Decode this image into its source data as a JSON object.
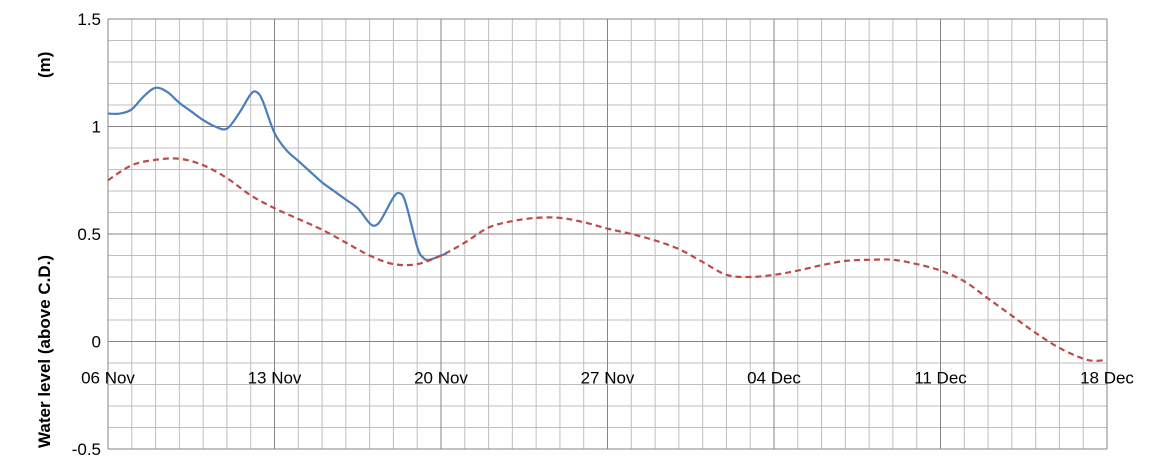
{
  "colors": {
    "grid_minor": "#bfbfbf",
    "grid_major": "#868686",
    "series_observed": "#4a7ebb",
    "series_predicted": "#be4b48"
  },
  "chart_data": {
    "type": "line",
    "title": "",
    "xlabel": "",
    "ylabel": "Water level (above C.D.)",
    "ylabel_unit": "(m)",
    "x_axis_type": "date",
    "xlim": [
      "2020-11-06",
      "2020-12-18"
    ],
    "ylim": [
      -0.5,
      1.5
    ],
    "y_tick_values": [
      -0.5,
      0,
      0.5,
      1,
      1.5
    ],
    "y_tick_labels": [
      "-0.5",
      "0",
      "0.5",
      "1",
      "1.5"
    ],
    "x_tick_values": [
      "2020-11-06",
      "2020-11-13",
      "2020-11-20",
      "2020-11-27",
      "2020-12-04",
      "2020-12-11",
      "2020-12-18"
    ],
    "x_tick_labels": [
      "06 Nov",
      "13 Nov",
      "20 Nov",
      "27 Nov",
      "04 Dec",
      "11 Dec",
      "18 Dec"
    ],
    "x_axis_crosses_at": 0,
    "grid": true,
    "legend": "none",
    "series": [
      {
        "style": "solid",
        "color": "#4a7ebb",
        "points": [
          [
            "2020-11-06 00:00",
            1.06
          ],
          [
            "2020-11-06 12:00",
            1.06
          ],
          [
            "2020-11-07 00:00",
            1.08
          ],
          [
            "2020-11-07 12:00",
            1.14
          ],
          [
            "2020-11-08 00:00",
            1.18
          ],
          [
            "2020-11-08 12:00",
            1.16
          ],
          [
            "2020-11-09 00:00",
            1.11
          ],
          [
            "2020-11-09 12:00",
            1.07
          ],
          [
            "2020-11-10 00:00",
            1.03
          ],
          [
            "2020-11-10 12:00",
            1.0
          ],
          [
            "2020-11-11 00:00",
            0.99
          ],
          [
            "2020-11-11 12:00",
            1.06
          ],
          [
            "2020-11-12 00:00",
            1.15
          ],
          [
            "2020-11-12 06:00",
            1.16
          ],
          [
            "2020-11-12 12:00",
            1.12
          ],
          [
            "2020-11-13 00:00",
            0.97
          ],
          [
            "2020-11-13 12:00",
            0.89
          ],
          [
            "2020-11-14 00:00",
            0.84
          ],
          [
            "2020-11-14 12:00",
            0.79
          ],
          [
            "2020-11-15 00:00",
            0.74
          ],
          [
            "2020-11-15 12:00",
            0.7
          ],
          [
            "2020-11-16 00:00",
            0.66
          ],
          [
            "2020-11-16 12:00",
            0.62
          ],
          [
            "2020-11-17 00:00",
            0.55
          ],
          [
            "2020-11-17 06:00",
            0.54
          ],
          [
            "2020-11-17 12:00",
            0.57
          ],
          [
            "2020-11-18 00:00",
            0.67
          ],
          [
            "2020-11-18 06:00",
            0.69
          ],
          [
            "2020-11-18 12:00",
            0.65
          ],
          [
            "2020-11-19 00:00",
            0.44
          ],
          [
            "2020-11-19 06:00",
            0.39
          ],
          [
            "2020-11-19 12:00",
            0.38
          ],
          [
            "2020-11-20 00:00",
            0.4
          ],
          [
            "2020-11-20 06:00",
            0.41
          ]
        ]
      },
      {
        "style": "dashed",
        "color": "#be4b48",
        "points": [
          [
            "2020-11-06 00:00",
            0.75
          ],
          [
            "2020-11-07 00:00",
            0.82
          ],
          [
            "2020-11-08 00:00",
            0.845
          ],
          [
            "2020-11-09 00:00",
            0.85
          ],
          [
            "2020-11-10 00:00",
            0.82
          ],
          [
            "2020-11-11 00:00",
            0.76
          ],
          [
            "2020-11-12 00:00",
            0.68
          ],
          [
            "2020-11-13 00:00",
            0.62
          ],
          [
            "2020-11-14 00:00",
            0.57
          ],
          [
            "2020-11-15 00:00",
            0.52
          ],
          [
            "2020-11-16 00:00",
            0.46
          ],
          [
            "2020-11-17 00:00",
            0.4
          ],
          [
            "2020-11-18 00:00",
            0.36
          ],
          [
            "2020-11-19 00:00",
            0.36
          ],
          [
            "2020-11-20 00:00",
            0.4
          ],
          [
            "2020-11-21 00:00",
            0.46
          ],
          [
            "2020-11-22 00:00",
            0.53
          ],
          [
            "2020-11-23 00:00",
            0.56
          ],
          [
            "2020-11-24 00:00",
            0.575
          ],
          [
            "2020-11-25 00:00",
            0.575
          ],
          [
            "2020-11-26 00:00",
            0.555
          ],
          [
            "2020-11-27 00:00",
            0.525
          ],
          [
            "2020-11-28 00:00",
            0.5
          ],
          [
            "2020-11-29 00:00",
            0.47
          ],
          [
            "2020-11-30 00:00",
            0.43
          ],
          [
            "2020-12-01 00:00",
            0.37
          ],
          [
            "2020-12-02 00:00",
            0.31
          ],
          [
            "2020-12-03 00:00",
            0.3
          ],
          [
            "2020-12-04 00:00",
            0.31
          ],
          [
            "2020-12-05 00:00",
            0.33
          ],
          [
            "2020-12-06 00:00",
            0.355
          ],
          [
            "2020-12-07 00:00",
            0.375
          ],
          [
            "2020-12-08 00:00",
            0.38
          ],
          [
            "2020-12-09 00:00",
            0.38
          ],
          [
            "2020-12-10 00:00",
            0.36
          ],
          [
            "2020-12-11 00:00",
            0.33
          ],
          [
            "2020-12-12 00:00",
            0.28
          ],
          [
            "2020-12-13 00:00",
            0.2
          ],
          [
            "2020-12-14 00:00",
            0.12
          ],
          [
            "2020-12-15 00:00",
            0.04
          ],
          [
            "2020-12-16 00:00",
            -0.03
          ],
          [
            "2020-12-17 00:00",
            -0.08
          ],
          [
            "2020-12-17 12:00",
            -0.09
          ],
          [
            "2020-12-18 00:00",
            -0.085
          ]
        ]
      }
    ]
  }
}
